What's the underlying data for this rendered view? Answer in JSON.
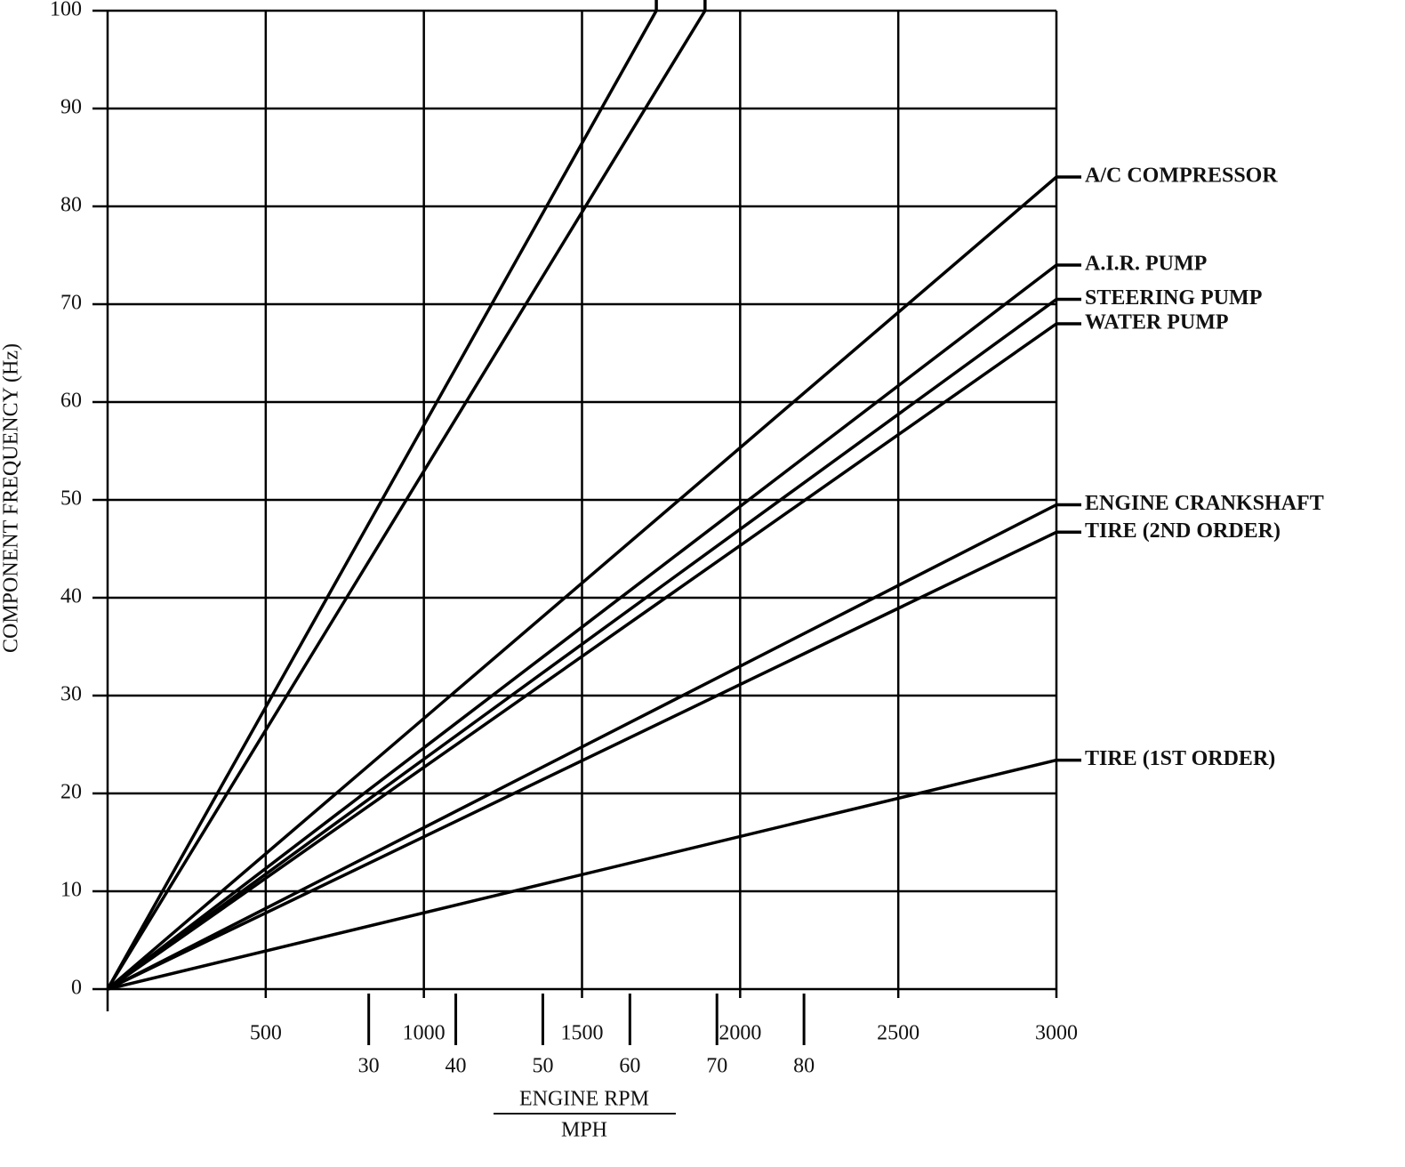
{
  "chart_data": {
    "type": "line",
    "xlabel": "ENGINE RPM",
    "x2label": "MPH",
    "ylabel": "COMPONENT FREQUENCY (Hz)",
    "xlim": [
      0,
      3000
    ],
    "xticks": [
      500,
      1000,
      1500,
      2000,
      2500,
      3000
    ],
    "x2lim": [
      0,
      109
    ],
    "x2ticks": [
      30,
      40,
      50,
      60,
      70,
      80
    ],
    "ylim": [
      0,
      100
    ],
    "yticks": [
      0,
      10,
      20,
      30,
      40,
      50,
      60,
      70,
      80,
      90,
      100
    ],
    "grid": true,
    "color": "#000000",
    "series": [
      {
        "x": [
          0,
          1735
        ],
        "values": [
          0,
          100
        ]
      },
      {
        "x": [
          0,
          1889
        ],
        "values": [
          0,
          100
        ]
      },
      {
        "name": "A/C COMPRESSOR",
        "x": [
          0,
          3000
        ],
        "values": [
          0,
          83
        ]
      },
      {
        "name": "A.I.R. PUMP",
        "x": [
          0,
          3000
        ],
        "values": [
          0,
          74
        ]
      },
      {
        "name": "STEERING PUMP",
        "x": [
          0,
          3000
        ],
        "values": [
          0,
          70.5
        ]
      },
      {
        "name": "WATER PUMP",
        "x": [
          0,
          3000
        ],
        "values": [
          0,
          68
        ]
      },
      {
        "name": "ENGINE CRANKSHAFT",
        "x": [
          0,
          3000
        ],
        "values": [
          0,
          49.5
        ]
      },
      {
        "name": "TIRE (2ND ORDER)",
        "x": [
          0,
          3000
        ],
        "values": [
          0,
          46.7
        ]
      },
      {
        "name": "TIRE (1ST ORDER)",
        "x": [
          0,
          3000
        ],
        "values": [
          0,
          23.4
        ]
      }
    ]
  }
}
